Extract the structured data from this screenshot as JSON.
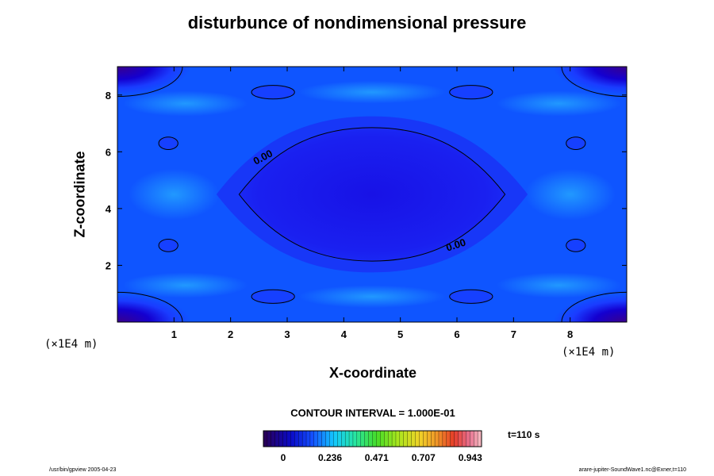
{
  "chart_data": {
    "type": "heatmap",
    "title": "disturbunce of nondimensional pressure",
    "xlabel": "X-coordinate",
    "ylabel": "Z-coordinate",
    "xunit": "(×1E4 m)",
    "yunit": "(×1E4 m)",
    "xlim": [
      0,
      9
    ],
    "ylim": [
      0,
      9
    ],
    "xticks": [
      1,
      2,
      3,
      4,
      5,
      6,
      7,
      8
    ],
    "yticks": [
      2,
      4,
      6,
      8
    ],
    "contour_interval_label": "CONTOUR INTERVAL = 1.000E-01",
    "contour_labels": [
      {
        "text": "0.00",
        "x": 2.6,
        "z": 5.7,
        "angle": -28
      },
      {
        "text": "0.00",
        "x": 6.0,
        "z": 2.6,
        "angle": -18
      }
    ],
    "time_label": "t=110 s",
    "colorbar": {
      "min": -0.1,
      "max": 1.0,
      "tick_values": [
        0,
        0.236,
        0.471,
        0.707,
        0.943
      ],
      "tick_labels": [
        "0",
        "0.236",
        "0.471",
        "0.707",
        "0.943"
      ]
    },
    "regions": [
      {
        "kind": "central-minimum",
        "center": [
          4.5,
          4.5
        ],
        "level": 0.0,
        "fill": "#1a1ae8"
      },
      {
        "kind": "corner-minimum",
        "corners": [
          [
            0,
            0
          ],
          [
            0,
            9
          ],
          [
            9,
            0
          ],
          [
            9,
            9
          ]
        ],
        "fill": "#3300a0"
      },
      {
        "kind": "small-closed-contours",
        "centers": [
          [
            2.75,
            8.1
          ],
          [
            6.25,
            8.1
          ],
          [
            2.75,
            0.9
          ],
          [
            6.25,
            0.9
          ],
          [
            0.9,
            6.3
          ],
          [
            8.1,
            6.3
          ],
          [
            0.9,
            2.7
          ],
          [
            8.1,
            2.7
          ]
        ]
      }
    ]
  },
  "footer": {
    "left": "/usr/bin/gpview 2005-04-23",
    "right": "arare-jupiter-SoundWave1.nc@Exner,t=110"
  }
}
